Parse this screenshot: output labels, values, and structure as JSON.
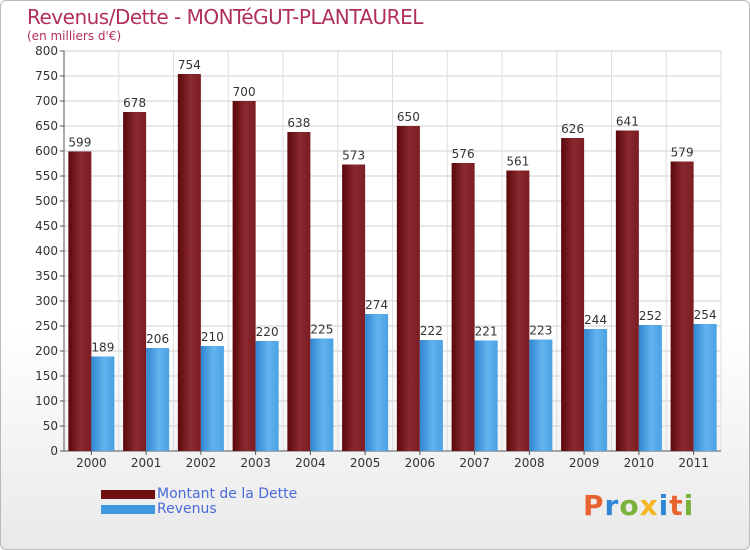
{
  "title": "Revenus/Dette - MONTéGUT-PLANTAUREL",
  "subtitle": "(en milliers d'€)",
  "logo_text": "Proxiti",
  "colors": {
    "debt": "#6f0f12",
    "debt_light": "#8e2e34",
    "revenue": "#3f97dd",
    "revenue_light": "#61b2ee",
    "axis_text": "#333333",
    "grid": "#c9c9c9"
  },
  "chart_data": {
    "type": "bar",
    "title": "Revenus/Dette - MONTéGUT-PLANTAUREL",
    "subtitle": "(en milliers d'€)",
    "categories": [
      "2000",
      "2001",
      "2002",
      "2003",
      "2004",
      "2005",
      "2006",
      "2007",
      "2008",
      "2009",
      "2010",
      "2011"
    ],
    "series": [
      {
        "name": "Montant de la Dette",
        "values": [
          599,
          678,
          754,
          700,
          638,
          573,
          650,
          576,
          561,
          626,
          641,
          579
        ]
      },
      {
        "name": "Revenus",
        "values": [
          189,
          206,
          210,
          220,
          225,
          274,
          222,
          221,
          223,
          244,
          252,
          254
        ]
      }
    ],
    "ylim": [
      0,
      800
    ],
    "yticks": [
      0,
      50,
      100,
      150,
      200,
      250,
      300,
      350,
      400,
      450,
      500,
      550,
      600,
      650,
      700,
      750,
      800
    ],
    "grid": true,
    "legend_position": "bottom-left"
  }
}
